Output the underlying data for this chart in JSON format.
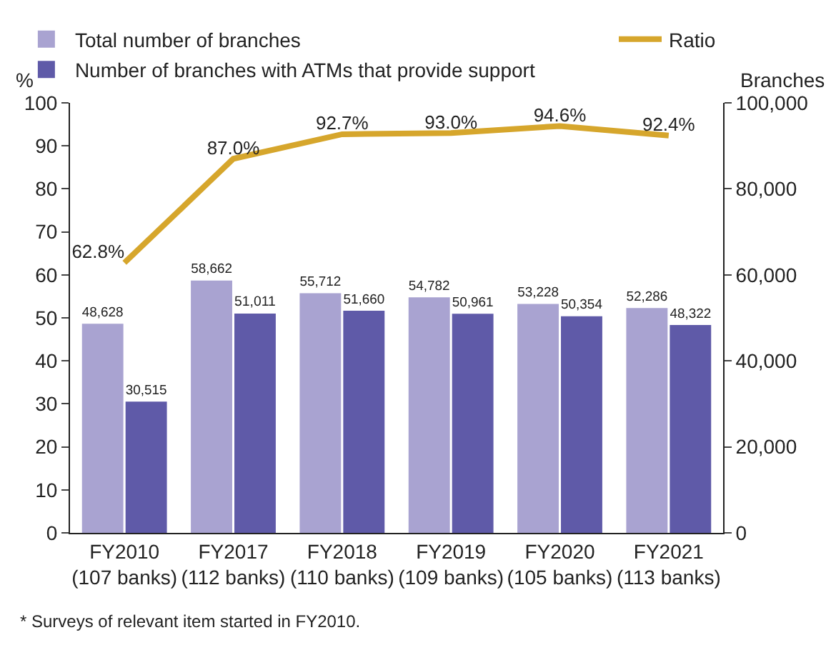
{
  "chart_data": {
    "type": "bar",
    "categories": [
      "FY2010\n(107 banks)",
      "FY2017\n(112 banks)",
      "FY2018\n(110 banks)",
      "FY2019\n(109 banks)",
      "FY2020\n(105 banks)",
      "FY2021\n(113 banks)"
    ],
    "ylabel": "%",
    "y2label": "Branches",
    "ylim": [
      0,
      100
    ],
    "yticks": [
      0,
      10,
      20,
      30,
      40,
      50,
      60,
      70,
      80,
      90,
      100
    ],
    "y2lim": [
      0,
      100000
    ],
    "y2ticks": [
      0,
      {
        "value": 20000,
        "label": "20,000"
      },
      {
        "value": 40000,
        "label": "40,000"
      },
      {
        "value": 60000,
        "label": "60,000"
      },
      {
        "value": 80000,
        "label": "80,000"
      },
      {
        "value": 100000,
        "label": "100,000"
      }
    ],
    "series": [
      {
        "name": "Total number of branches",
        "axis": "y2",
        "color": "#a9a3d1",
        "values": [
          48628,
          58662,
          55712,
          54782,
          53228,
          52286
        ],
        "value_labels": [
          "48,628",
          "58,662",
          "55,712",
          "54,782",
          "53,228",
          "52,286"
        ]
      },
      {
        "name": "Number of branches with ATMs that provide support",
        "axis": "y2",
        "color": "#5f5aa8",
        "values": [
          30515,
          51011,
          51660,
          50961,
          50354,
          48322
        ],
        "value_labels": [
          "30,515",
          "51,011",
          "51,660",
          "50,961",
          "50,354",
          "48,322"
        ]
      },
      {
        "name": "Ratio",
        "type": "line",
        "color": "#d6a62c",
        "values": [
          62.8,
          87.0,
          92.7,
          93.0,
          94.6,
          92.4
        ],
        "value_labels": [
          "62.8%",
          "87.0%",
          "92.7%",
          "93.0%",
          "94.6%",
          "92.4%"
        ]
      }
    ],
    "annotations": [
      "* Surveys of relevant item started in FY2010."
    ],
    "grid": false,
    "legend": "top",
    "marker": "none",
    "line_style": "solid"
  }
}
